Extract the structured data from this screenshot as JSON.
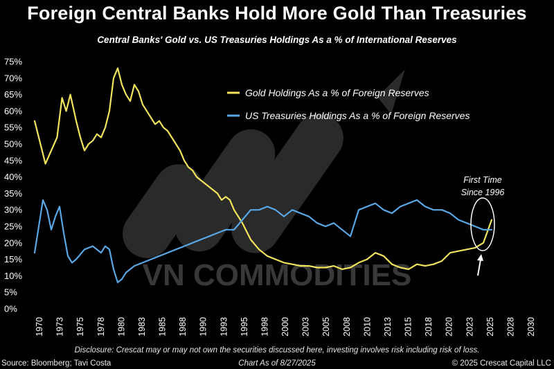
{
  "chart_data": {
    "type": "line",
    "title": "Foreign Central Banks Hold More Gold Than Treasuries",
    "subtitle": "Central Banks' Gold vs. US Treasuries Holdings As a % of International Reserves",
    "xlabel": "",
    "ylabel": "",
    "xlim": [
      1970,
      2030
    ],
    "ylim": [
      0,
      75
    ],
    "y_ticks": [
      "0%",
      "5%",
      "10%",
      "15%",
      "20%",
      "25%",
      "30%",
      "35%",
      "40%",
      "45%",
      "50%",
      "55%",
      "60%",
      "65%",
      "70%",
      "75%"
    ],
    "x_ticks": [
      "1970",
      "1973",
      "1975",
      "1978",
      "1980",
      "1983",
      "1985",
      "1988",
      "1990",
      "1993",
      "1995",
      "1998",
      "2000",
      "2003",
      "2005",
      "2008",
      "2010",
      "2013",
      "2015",
      "2018",
      "2020",
      "2023",
      "2025",
      "2028",
      "2030"
    ],
    "legend_position": "top-right",
    "series": [
      {
        "name": "Gold Holdings As a % of Foreign Reserves",
        "color": "#f2e55c",
        "x": [
          1970,
          1970.7,
          1971.3,
          1972,
          1972.7,
          1973.3,
          1973.8,
          1974.3,
          1975,
          1975.5,
          1976,
          1976.5,
          1977,
          1977.5,
          1978,
          1978.5,
          1979,
          1979.5,
          1980,
          1980.5,
          1981,
          1981.5,
          1982,
          1982.5,
          1983,
          1983.5,
          1984,
          1984.5,
          1985,
          1985.5,
          1986,
          1986.5,
          1987,
          1987.5,
          1988,
          1988.5,
          1989,
          1989.5,
          1990,
          1990.5,
          1991,
          1991.5,
          1992,
          1992.5,
          1993,
          1993.5,
          1994,
          1995,
          1996,
          1997,
          1998,
          1999,
          2000,
          2001,
          2002,
          2003,
          2004,
          2005,
          2006,
          2007,
          2008,
          2009,
          2010,
          2011,
          2012,
          2013,
          2014,
          2015,
          2016,
          2017,
          2018,
          2019,
          2020,
          2021,
          2022,
          2023,
          2024,
          2024.5,
          2025
        ],
        "values": [
          57,
          50,
          44,
          48,
          52,
          64,
          60,
          65,
          57,
          52,
          48,
          50,
          51,
          53,
          52,
          55,
          60,
          70,
          73,
          68,
          65,
          63,
          68,
          66,
          62,
          60,
          58,
          56,
          57,
          55,
          54,
          52,
          50,
          48,
          45,
          43,
          42,
          40,
          39,
          38,
          37,
          36,
          35,
          33,
          34,
          33,
          30,
          26,
          21,
          18,
          16,
          15,
          14,
          13.5,
          13,
          13,
          12.5,
          12.5,
          13,
          12,
          12.5,
          14,
          15,
          17,
          16,
          13.5,
          12.5,
          12,
          13.5,
          13,
          13.5,
          14.5,
          17,
          17.5,
          18,
          18.5,
          20,
          23.5,
          27
        ]
      },
      {
        "name": "US Treasuries Holdings As a % of Foreign Reserves",
        "color": "#5aa7e6",
        "x": [
          1970,
          1970.5,
          1971,
          1971.5,
          1972,
          1972.5,
          1973,
          1973.5,
          1974,
          1974.5,
          1975,
          1976,
          1977,
          1978,
          1978.5,
          1979,
          1979.5,
          1980,
          1980.5,
          1981,
          1982,
          1983,
          1984,
          1985,
          1986,
          1987,
          1988,
          1989,
          1990,
          1991,
          1992,
          1993,
          1994,
          1995,
          1996,
          1997,
          1998,
          1999,
          2000,
          2001,
          2002,
          2003,
          2004,
          2005,
          2006,
          2007,
          2008,
          2009,
          2010,
          2011,
          2012,
          2013,
          2014,
          2015,
          2016,
          2017,
          2018,
          2019,
          2020,
          2021,
          2022,
          2023,
          2024,
          2025
        ],
        "values": [
          17,
          25,
          33,
          30,
          24,
          28,
          31,
          23,
          16,
          14,
          15,
          18,
          19,
          17,
          19,
          18,
          12,
          8,
          9,
          11,
          13,
          14,
          15,
          16,
          17,
          18,
          19,
          20,
          21,
          22,
          23,
          24,
          24,
          27,
          30,
          30,
          31,
          30,
          28,
          30,
          29,
          28,
          26,
          25,
          26,
          24,
          22,
          30,
          31,
          32,
          30,
          29,
          31,
          32,
          33,
          31,
          30,
          30,
          29,
          27,
          26,
          25,
          24,
          24
        ]
      }
    ],
    "annotation": {
      "text": "First Time\nSince 1996"
    }
  },
  "footer": {
    "disclaimer": "Disclosure: Crescat may or may not own the securities discussed here, investing involves risk including risk of loss.",
    "source": "Source: Bloomberg; Tavi Costa",
    "chart_as_of": "Chart As of 8/27/2025",
    "copyright": "© 2025 Crescat Capital LLC"
  },
  "watermark": {
    "text": "VN COMMODITIES"
  }
}
